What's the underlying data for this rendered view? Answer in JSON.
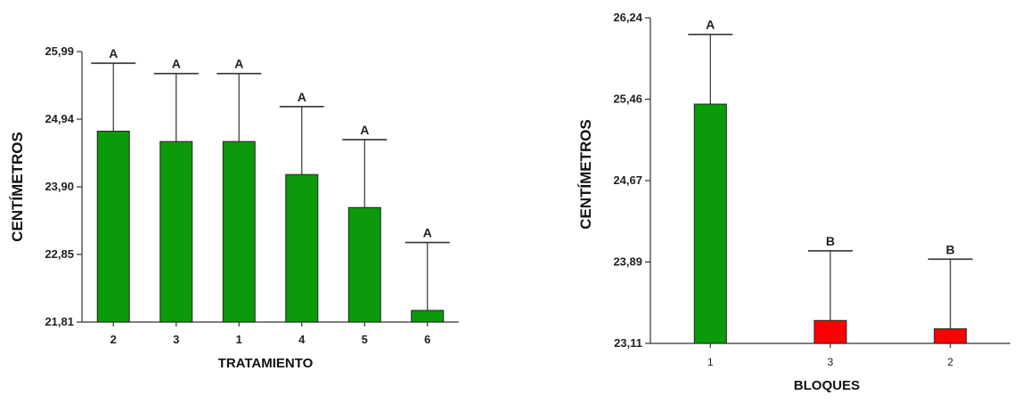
{
  "chart_data": [
    {
      "type": "bar",
      "xlabel": "TRATAMIENTO",
      "ylabel": "CENTÍMETROS",
      "yticks": [
        "21,81",
        "22,85",
        "23,90",
        "24,94",
        "25,99"
      ],
      "ylim": [
        21.81,
        25.99
      ],
      "categories": [
        "2",
        "3",
        "1",
        "4",
        "5",
        "6"
      ],
      "values": [
        24.76,
        24.6,
        24.6,
        24.09,
        23.58,
        21.99
      ],
      "error_upper": [
        25.81,
        25.65,
        25.65,
        25.14,
        24.63,
        23.04
      ],
      "letters": [
        "A",
        "A",
        "A",
        "A",
        "A",
        "A"
      ],
      "colors": [
        "#0a9a0a",
        "#0a9a0a",
        "#0a9a0a",
        "#0a9a0a",
        "#0a9a0a",
        "#0a9a0a"
      ],
      "grid": false
    },
    {
      "type": "bar",
      "xlabel": "BLOQUES",
      "ylabel": "CENTÍMETROS",
      "yticks": [
        "23,11",
        "23,89",
        "24,67",
        "25,46",
        "26,24"
      ],
      "ylim": [
        23.11,
        26.24
      ],
      "categories": [
        "1",
        "3",
        "2"
      ],
      "values": [
        25.41,
        23.33,
        23.25
      ],
      "error_upper": [
        26.08,
        24.0,
        23.92
      ],
      "letters": [
        "A",
        "B",
        "B"
      ],
      "colors": [
        "#0a9a0a",
        "#ff0000",
        "#ff0000"
      ],
      "grid": false
    }
  ]
}
